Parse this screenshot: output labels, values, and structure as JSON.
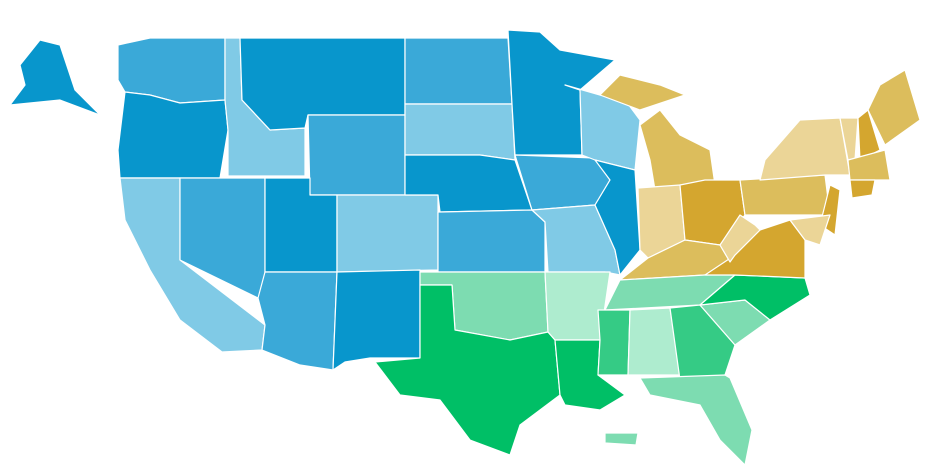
{
  "map": {
    "palette": [
      "#0896cc",
      "#3aa9d8",
      "#80cae6",
      "#00bf66",
      "#35cb85",
      "#7ddcb1",
      "#aeeccf",
      "#d4a62f",
      "#dcbd5c",
      "#ebd597"
    ]
  }
}
